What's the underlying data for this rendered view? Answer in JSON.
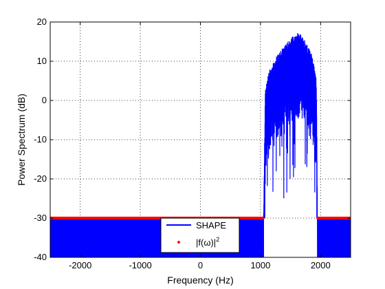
{
  "chart_data": {
    "type": "line",
    "title": "",
    "xlabel": "Frequency (Hz)",
    "ylabel": "Power Spectrum (dB)",
    "xlim": [
      -2500,
      2500
    ],
    "ylim": [
      -40,
      20
    ],
    "xticks": [
      -2000,
      -1000,
      0,
      1000,
      2000
    ],
    "yticks": [
      -40,
      -30,
      -20,
      -10,
      0,
      10,
      20
    ],
    "xtick_labels": [
      "-2000",
      "-1000",
      "0",
      "1000",
      "2000"
    ],
    "ytick_labels": [
      "-40",
      "-30",
      "-20",
      "-10",
      "0",
      "10",
      "20"
    ],
    "grid": true,
    "grid_style": "dotted",
    "legend_position": "bottom-center",
    "series": [
      {
        "name": "SHAPE",
        "style": "line",
        "color": "#0000ff",
        "description_of_shape": "noise floor band between -40 and -30 dB outside passband; passband 1050-1950 Hz rising to peaks near 17 dB",
        "passband": [
          1050,
          1950
        ],
        "floor_level_db": -30,
        "floor_min_db": -40,
        "peak_db": 17.5,
        "envelope_points": [
          {
            "x": 1050,
            "y": -30
          },
          {
            "x": 1080,
            "y": 3
          },
          {
            "x": 1150,
            "y": 8
          },
          {
            "x": 1250,
            "y": 11
          },
          {
            "x": 1350,
            "y": 13
          },
          {
            "x": 1450,
            "y": 15
          },
          {
            "x": 1550,
            "y": 16.5
          },
          {
            "x": 1650,
            "y": 17.5
          },
          {
            "x": 1750,
            "y": 15
          },
          {
            "x": 1850,
            "y": 12
          },
          {
            "x": 1930,
            "y": 6
          },
          {
            "x": 1950,
            "y": -30
          }
        ]
      },
      {
        "name": "|f(ω)|",
        "name_superscript": "2",
        "style": "markers",
        "color": "#ff0000",
        "value_db": -30,
        "x_ranges": [
          [
            -2500,
            1050
          ],
          [
            1950,
            2500
          ]
        ]
      }
    ]
  }
}
